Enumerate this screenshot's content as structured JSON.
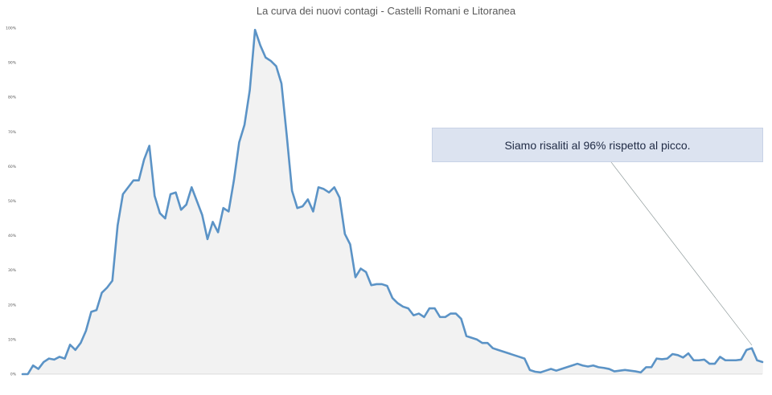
{
  "chart_data": {
    "type": "area",
    "title": "La curva dei nuovi contagi - Castelli Romani e Litoranea",
    "xlabel": "",
    "ylabel": "",
    "ylim": [
      0,
      100
    ],
    "y_ticks": [
      "0%",
      "10%",
      "20%",
      "30%",
      "40%",
      "50%",
      "60%",
      "70%",
      "80%",
      "90%",
      "100%"
    ],
    "grid": false,
    "annotation": "Siamo risaliti al 96% rispetto al picco.",
    "line_color": "#5b93c6",
    "values": [
      0,
      0,
      2.5,
      1.5,
      3.5,
      4.5,
      4.2,
      5,
      4.5,
      8.5,
      7,
      9,
      12.5,
      18,
      18.5,
      23.5,
      25,
      27,
      43,
      52,
      54,
      56,
      56,
      62,
      66,
      51.5,
      46.5,
      45,
      52,
      52.5,
      47.5,
      49,
      54,
      50,
      46,
      39,
      44,
      41,
      48,
      47,
      56,
      67,
      72,
      82,
      99.5,
      95,
      91.5,
      90.5,
      89,
      84,
      69,
      53,
      48,
      48.5,
      50.5,
      47,
      54,
      53.5,
      52.5,
      54,
      51,
      40.5,
      37.5,
      28,
      30.5,
      29.5,
      25.7,
      26,
      26,
      25.5,
      22,
      20.5,
      19.5,
      19,
      17,
      17.5,
      16.5,
      19,
      19,
      16.5,
      16.5,
      17.5,
      17.5,
      16,
      11,
      10.5,
      10,
      9,
      9,
      7.5,
      7,
      6.5,
      6,
      5.5,
      5,
      4.5,
      1.2,
      0.7,
      0.5,
      1,
      1.5,
      1,
      1.5,
      2,
      2.5,
      3,
      2.5,
      2.2,
      2.5,
      2,
      1.8,
      1.5,
      0.8,
      1,
      1.2,
      1,
      0.8,
      0.5,
      2,
      2,
      4.5,
      4.3,
      4.5,
      5.8,
      5.5,
      4.8,
      6,
      4,
      4,
      4.2,
      3,
      3,
      5,
      4,
      4,
      4,
      4.2,
      7,
      7.5,
      4,
      3.5
    ]
  }
}
